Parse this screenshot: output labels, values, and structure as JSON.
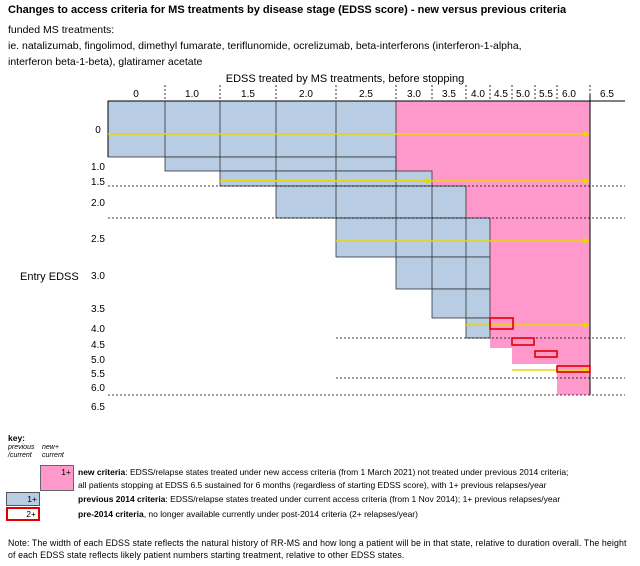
{
  "title": "Changes to access criteria for MS treatments by disease stage (EDSS score) - new versus previous criteria",
  "subtitle": {
    "line1": "funded MS treatments:",
    "line2": "ie. natalizumab, fingolimod, dimethyl fumarate, teriflunomide, ocrelizumab, beta-interferons (interferon-1-alpha,",
    "line3": "interferon beta-1-beta), glatiramer acetate"
  },
  "chart_data": {
    "type": "diagram",
    "top_axis_label": "EDSS treated by MS treatments, before stopping",
    "left_axis_label": "Entry EDSS",
    "x_labels": [
      "0",
      "1.0",
      "1.5",
      "2.0",
      "2.5",
      "3.0",
      "3.5",
      "4.0",
      "4.5",
      "5.0",
      "5.5",
      "6.0",
      "6.5"
    ],
    "y_labels": [
      "0",
      "1.0",
      "1.5",
      "2.0",
      "2.5",
      "3.0",
      "3.5",
      "4.0",
      "4.5",
      "5.0",
      "5.5",
      "6.0",
      "6.5"
    ],
    "regions": [
      {
        "name": "new criteria (1+ relapses)",
        "color": "#ff99cc",
        "entry_edss": "0 to 6.0",
        "treated_until": "6.5"
      },
      {
        "name": "previous 2014 criteria (1+ relapses)",
        "color": "#b8cce4",
        "entry_edss": "0 to 4.0",
        "treated_until": "4.0"
      },
      {
        "name": "pre-2014 criteria (2+ relapses)",
        "color": "#e00000",
        "entry_edss": "4.0 to 6.0",
        "treated_until": "6.0"
      }
    ]
  },
  "key": {
    "heading": "key:",
    "col1": "previous /current",
    "col2": "new+ current",
    "items": [
      {
        "marker": "1+",
        "label": "new criteria",
        "text": ": EDSS/relapse states treated under new access criteria (from 1 March 2021) not treated under previous 2014 criteria;",
        "text2": "all patients stopping at EDSS 6.5 sustained for 6 months (regardless of starting EDSS score), with 1+ previous relapses/year",
        "color": "#ff99cc"
      },
      {
        "marker": "1+",
        "label": "previous 2014 criteria",
        "text": ": EDSS/relapse states treated under current access criteria (from 1 Nov 2014); 1+ previous relapses/year",
        "color": "#b8cce4"
      },
      {
        "marker": "2+",
        "label": "pre-2014 criteria",
        "text": ", no longer available currently under post-2014 criteria (2+ relapses/year)",
        "color": "#e00000"
      }
    ]
  },
  "note": "Note: The width of each EDSS state reflects the natural history of RR-MS and how long a patient will be in that state, relative to duration overall. The height of each EDSS state reflects likely patient numbers starting treatment, relative to other EDSS states."
}
